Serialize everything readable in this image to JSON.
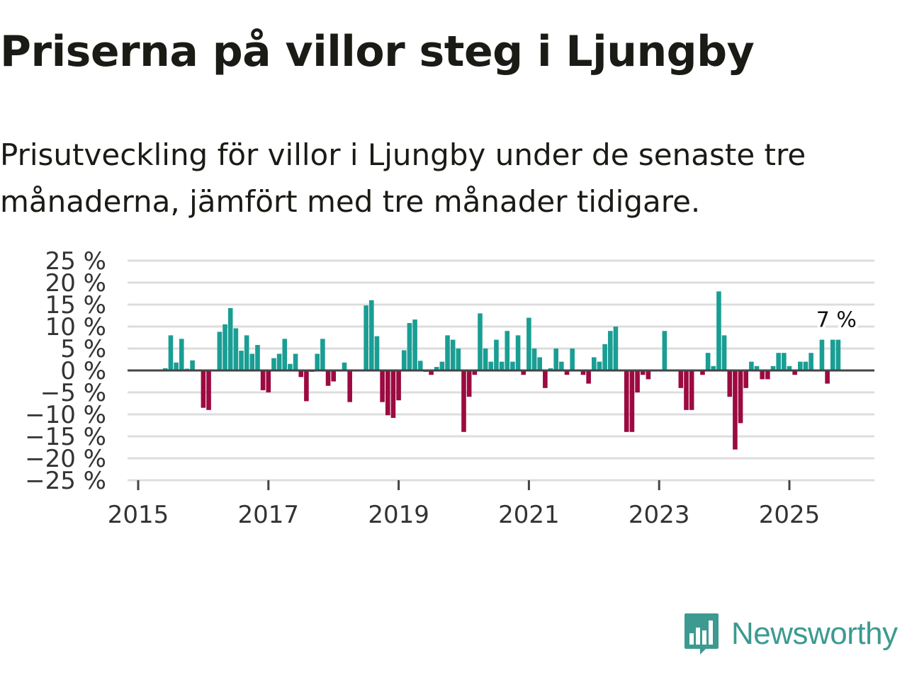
{
  "header": {
    "title": "Priserna på villor steg i Ljungby",
    "subtitle": "Prisutveckling för villor i Ljungby under de senaste tre månaderna, jämfört med tre månader tidigare."
  },
  "colors": {
    "positive": "#1a9e94",
    "negative": "#9b0a40",
    "grid": "#dddddd",
    "zero_line": "#444444",
    "brand": "#3c9a90"
  },
  "brand": {
    "name": "Newsworthy",
    "icon": "newsworthy-logo-icon"
  },
  "chart_data": {
    "type": "bar",
    "title": "Priserna på villor steg i Ljungby",
    "subtitle": "Prisutveckling för villor i Ljungby under de senaste tre månaderna, jämfört med tre månader tidigare.",
    "xlabel": "",
    "ylabel": "",
    "ylim": [
      -25,
      25
    ],
    "xlim": [
      2015,
      2026.3
    ],
    "grid": true,
    "y_ticks": [
      25,
      20,
      15,
      10,
      5,
      0,
      -5,
      -10,
      -15,
      -20,
      -25
    ],
    "y_tick_labels": [
      "25 %",
      "20 %",
      "15 %",
      "10 %",
      "5 %",
      "0 %",
      "−5 %",
      "−10 %",
      "−15 %",
      "−20 %",
      "−25 %"
    ],
    "x_ticks": [
      2015,
      2017,
      2019,
      2021,
      2023,
      2025
    ],
    "x_tick_labels": [
      "2015",
      "2017",
      "2019",
      "2021",
      "2023",
      "2025"
    ],
    "annotation": {
      "text": "7 %",
      "x": "2025-10",
      "y": 7
    },
    "series": [
      {
        "name": "Prisutveckling",
        "points": [
          [
            "2015-06",
            0.5
          ],
          [
            "2015-07",
            8
          ],
          [
            "2015-08",
            1.8
          ],
          [
            "2015-09",
            7.2
          ],
          [
            "2015-10",
            0.4
          ],
          [
            "2015-11",
            2.3
          ],
          [
            "2016-01",
            -8.5
          ],
          [
            "2016-02",
            -9
          ],
          [
            "2016-04",
            8.8
          ],
          [
            "2016-05",
            10.5
          ],
          [
            "2016-06",
            14.2
          ],
          [
            "2016-07",
            9.6
          ],
          [
            "2016-08",
            4.5
          ],
          [
            "2016-09",
            8
          ],
          [
            "2016-10",
            3.8
          ],
          [
            "2016-11",
            5.8
          ],
          [
            "2016-12",
            -4.5
          ],
          [
            "2017-01",
            -5
          ],
          [
            "2017-02",
            2.8
          ],
          [
            "2017-03",
            3.8
          ],
          [
            "2017-04",
            7.2
          ],
          [
            "2017-05",
            1.5
          ],
          [
            "2017-06",
            3.8
          ],
          [
            "2017-07",
            -1.5
          ],
          [
            "2017-08",
            -7
          ],
          [
            "2017-09",
            -0.3
          ],
          [
            "2017-10",
            3.8
          ],
          [
            "2017-11",
            7.2
          ],
          [
            "2017-12",
            -3.5
          ],
          [
            "2018-01",
            -2.5
          ],
          [
            "2018-03",
            1.8
          ],
          [
            "2018-04",
            -7.2
          ],
          [
            "2018-07",
            14.8
          ],
          [
            "2018-08",
            16
          ],
          [
            "2018-09",
            7.8
          ],
          [
            "2018-10",
            -7.2
          ],
          [
            "2018-11",
            -10.2
          ],
          [
            "2018-12",
            -10.8
          ],
          [
            "2019-01",
            -6.8
          ],
          [
            "2019-02",
            4.6
          ],
          [
            "2019-03",
            10.8
          ],
          [
            "2019-04",
            11.6
          ],
          [
            "2019-05",
            2.2
          ],
          [
            "2019-06",
            -0.3
          ],
          [
            "2019-07",
            -1
          ],
          [
            "2019-08",
            0.8
          ],
          [
            "2019-09",
            2
          ],
          [
            "2019-10",
            8
          ],
          [
            "2019-11",
            7
          ],
          [
            "2019-12",
            5
          ],
          [
            "2020-01",
            -14
          ],
          [
            "2020-02",
            -6
          ],
          [
            "2020-03",
            -1
          ],
          [
            "2020-04",
            13
          ],
          [
            "2020-05",
            5
          ],
          [
            "2020-06",
            2
          ],
          [
            "2020-07",
            7
          ],
          [
            "2020-08",
            2
          ],
          [
            "2020-09",
            9
          ],
          [
            "2020-10",
            2
          ],
          [
            "2020-11",
            8
          ],
          [
            "2020-12",
            -1
          ],
          [
            "2021-01",
            12
          ],
          [
            "2021-02",
            5
          ],
          [
            "2021-03",
            3
          ],
          [
            "2021-04",
            -4
          ],
          [
            "2021-05",
            0.5
          ],
          [
            "2021-06",
            5
          ],
          [
            "2021-07",
            2
          ],
          [
            "2021-08",
            -1
          ],
          [
            "2021-09",
            5
          ],
          [
            "2021-11",
            -1
          ],
          [
            "2021-12",
            -3
          ],
          [
            "2022-01",
            3
          ],
          [
            "2022-02",
            2
          ],
          [
            "2022-03",
            6
          ],
          [
            "2022-04",
            9
          ],
          [
            "2022-05",
            10
          ],
          [
            "2022-07",
            -14
          ],
          [
            "2022-08",
            -14
          ],
          [
            "2022-09",
            -5
          ],
          [
            "2022-10",
            -1
          ],
          [
            "2022-11",
            -2
          ],
          [
            "2023-02",
            9
          ],
          [
            "2023-05",
            -4
          ],
          [
            "2023-06",
            -9
          ],
          [
            "2023-07",
            -9
          ],
          [
            "2023-09",
            -1
          ],
          [
            "2023-10",
            4
          ],
          [
            "2023-11",
            1
          ],
          [
            "2023-12",
            18
          ],
          [
            "2024-01",
            8
          ],
          [
            "2024-02",
            -6
          ],
          [
            "2024-03",
            -18
          ],
          [
            "2024-04",
            -12
          ],
          [
            "2024-05",
            -4
          ],
          [
            "2024-06",
            2
          ],
          [
            "2024-07",
            1
          ],
          [
            "2024-08",
            -2
          ],
          [
            "2024-09",
            -2
          ],
          [
            "2024-10",
            1
          ],
          [
            "2024-11",
            4
          ],
          [
            "2024-12",
            4
          ],
          [
            "2025-01",
            1
          ],
          [
            "2025-02",
            -1
          ],
          [
            "2025-03",
            2
          ],
          [
            "2025-04",
            2
          ],
          [
            "2025-05",
            4
          ],
          [
            "2025-07",
            7
          ],
          [
            "2025-08",
            -3
          ],
          [
            "2025-09",
            7
          ],
          [
            "2025-10",
            7
          ]
        ]
      }
    ]
  }
}
